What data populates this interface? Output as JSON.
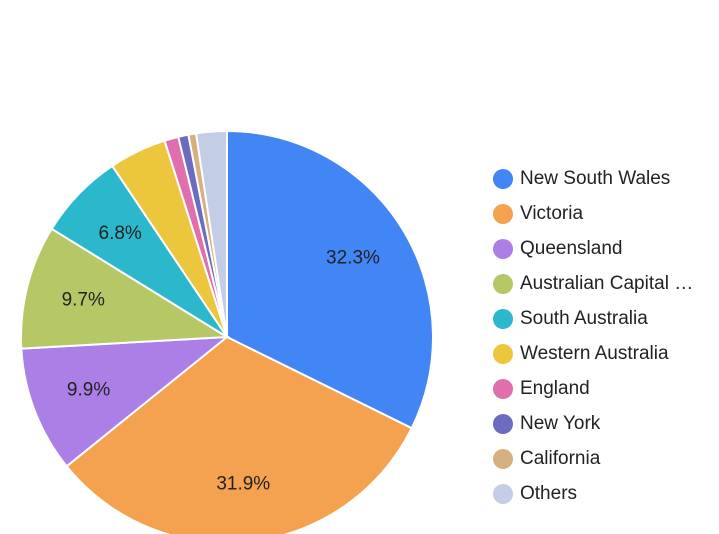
{
  "chart_data": {
    "type": "pie",
    "categories": [
      "New South Wales",
      "Victoria",
      "Queensland",
      "Australian Capital …",
      "South Australia",
      "Western Australia",
      "England",
      "New York",
      "California",
      "Others"
    ],
    "values": [
      32.3,
      31.9,
      9.9,
      9.7,
      6.8,
      4.5,
      1.1,
      0.8,
      0.6,
      2.4
    ],
    "value_labels": [
      "32.3%",
      "31.9%",
      "9.9%",
      "9.7%",
      "6.8%",
      null,
      null,
      null,
      null,
      null
    ],
    "colors": [
      "#4285f4",
      "#f4a150",
      "#ab7fe6",
      "#b5c865",
      "#2cb8cc",
      "#ecc63c",
      "#e26fad",
      "#6b6bbf",
      "#d6b07e",
      "#c3cde6"
    ],
    "legend": "right"
  }
}
